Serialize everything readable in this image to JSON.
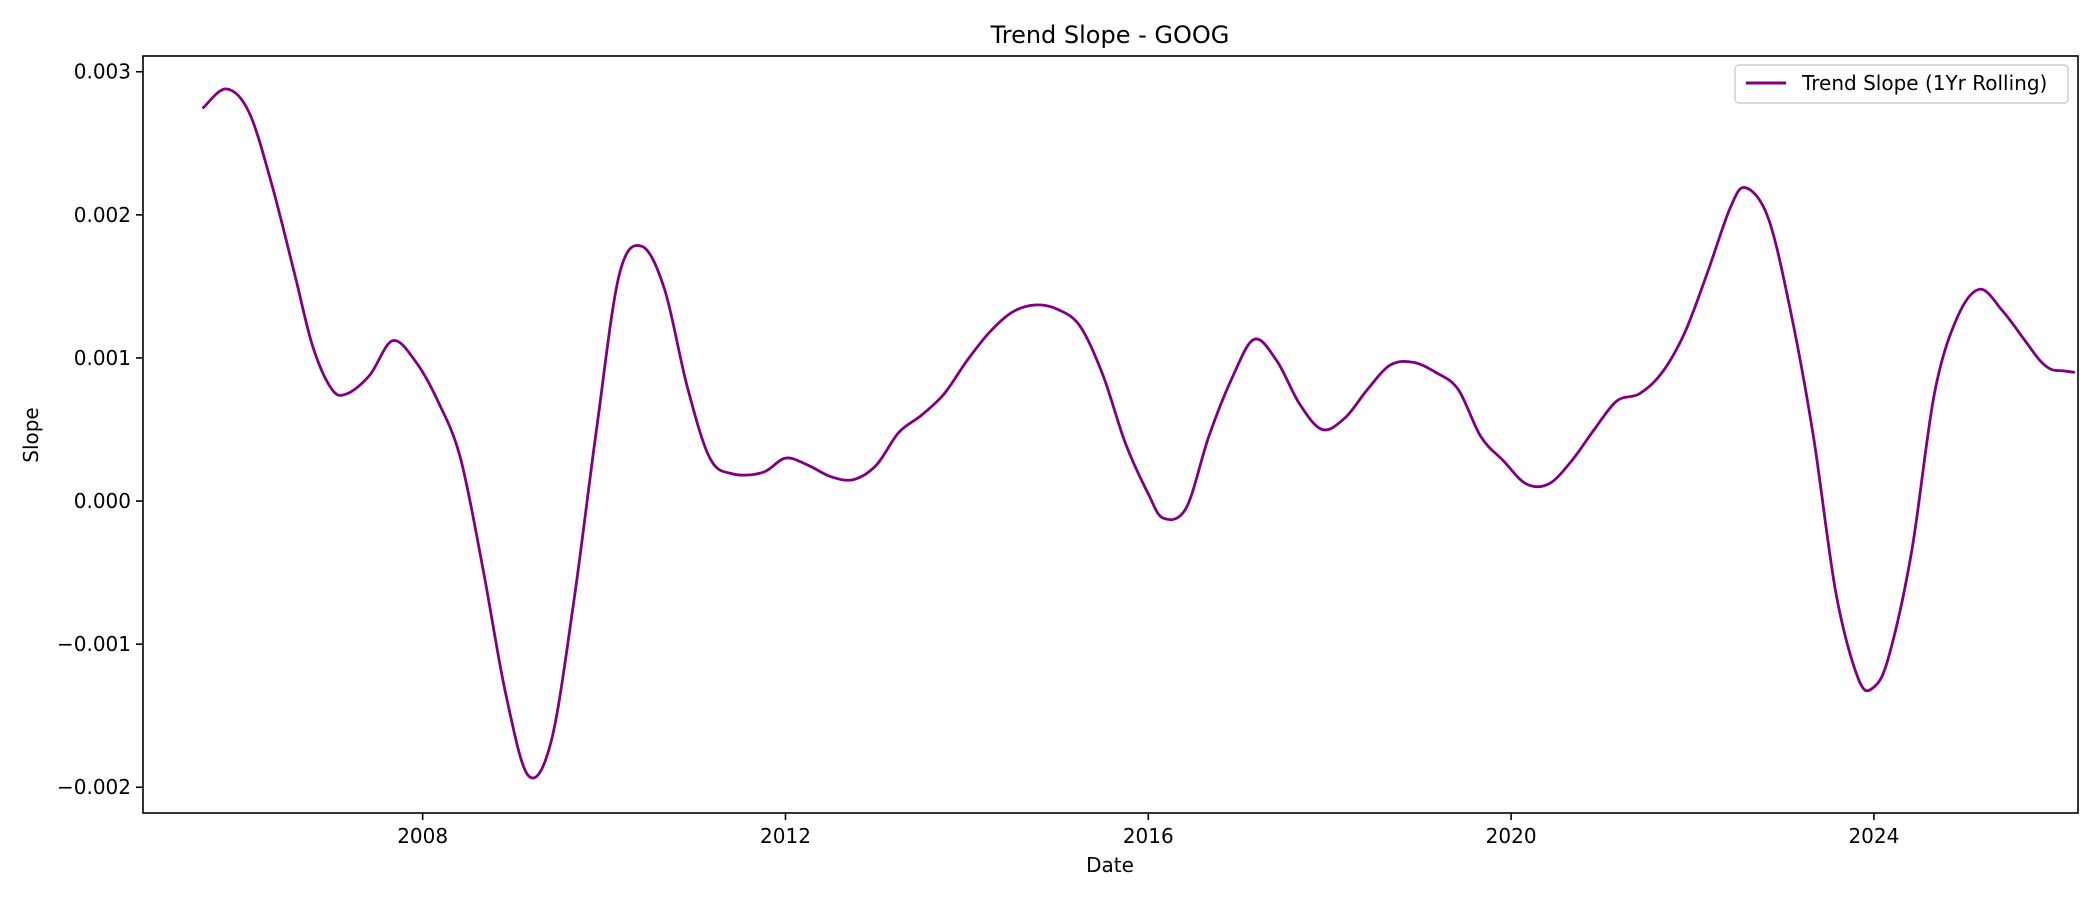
{
  "chart_data": {
    "type": "line",
    "title": "Trend Slope - GOOG",
    "xlabel": "Date",
    "ylabel": "Slope",
    "xlim": [
      "2004-12-01",
      "2026-04-01"
    ],
    "ylim": [
      -0.00218,
      0.00311
    ],
    "x_ticks": [
      "2008",
      "2012",
      "2016",
      "2020",
      "2024"
    ],
    "y_ticks": [
      {
        "value": 0.003,
        "label": "0.003"
      },
      {
        "value": 0.002,
        "label": "0.002"
      },
      {
        "value": 0.001,
        "label": "0.001"
      },
      {
        "value": 0.0,
        "label": "0.000"
      },
      {
        "value": -0.001,
        "label": "−0.001"
      },
      {
        "value": -0.002,
        "label": "−0.002"
      }
    ],
    "grid": false,
    "legend": {
      "placement": "top-right",
      "entries": [
        "Trend Slope (1Yr Rolling)"
      ]
    },
    "series": [
      {
        "name": "Trend Slope (1Yr Rolling)",
        "color": "#800080",
        "points": [
          [
            "2005-08-01",
            0.00275
          ],
          [
            "2005-11-01",
            0.00288
          ],
          [
            "2006-02-01",
            0.00272
          ],
          [
            "2006-05-01",
            0.00222
          ],
          [
            "2006-08-01",
            0.0016
          ],
          [
            "2006-10-15",
            0.00108
          ],
          [
            "2007-01-01",
            0.00078
          ],
          [
            "2007-03-01",
            0.00075
          ],
          [
            "2007-06-01",
            0.00088
          ],
          [
            "2007-09-01",
            0.00112
          ],
          [
            "2007-12-01",
            0.00098
          ],
          [
            "2008-03-01",
            0.0007
          ],
          [
            "2008-06-01",
            0.0003
          ],
          [
            "2008-09-01",
            -0.00048
          ],
          [
            "2008-12-01",
            -0.00135
          ],
          [
            "2009-03-01",
            -0.00192
          ],
          [
            "2009-06-01",
            -0.00168
          ],
          [
            "2009-09-01",
            -0.0007
          ],
          [
            "2009-12-01",
            0.0005
          ],
          [
            "2010-03-01",
            0.00158
          ],
          [
            "2010-06-01",
            0.00178
          ],
          [
            "2010-09-01",
            0.00148
          ],
          [
            "2010-12-01",
            0.0008
          ],
          [
            "2011-03-01",
            0.0003
          ],
          [
            "2011-06-01",
            0.00019
          ],
          [
            "2011-10-01",
            0.0002
          ],
          [
            "2012-01-01",
            0.0003
          ],
          [
            "2012-04-01",
            0.00025
          ],
          [
            "2012-07-01",
            0.00017
          ],
          [
            "2012-10-01",
            0.00015
          ],
          [
            "2013-01-01",
            0.00025
          ],
          [
            "2013-04-01",
            0.00048
          ],
          [
            "2013-07-01",
            0.0006
          ],
          [
            "2013-10-01",
            0.00075
          ],
          [
            "2014-01-01",
            0.00098
          ],
          [
            "2014-04-01",
            0.00118
          ],
          [
            "2014-07-01",
            0.00132
          ],
          [
            "2014-10-01",
            0.00137
          ],
          [
            "2015-01-01",
            0.00134
          ],
          [
            "2015-04-01",
            0.00122
          ],
          [
            "2015-07-01",
            0.00088
          ],
          [
            "2015-10-01",
            0.0004
          ],
          [
            "2016-01-01",
            5e-05
          ],
          [
            "2016-03-01",
            -0.00012
          ],
          [
            "2016-06-01",
            -5e-05
          ],
          [
            "2016-09-01",
            0.00045
          ],
          [
            "2016-12-01",
            0.00085
          ],
          [
            "2017-03-01",
            0.00113
          ],
          [
            "2017-06-01",
            0.00098
          ],
          [
            "2017-09-01",
            0.00068
          ],
          [
            "2017-12-01",
            0.0005
          ],
          [
            "2018-03-01",
            0.00058
          ],
          [
            "2018-06-01",
            0.00078
          ],
          [
            "2018-09-01",
            0.00095
          ],
          [
            "2018-12-01",
            0.00097
          ],
          [
            "2019-03-01",
            0.0009
          ],
          [
            "2019-06-01",
            0.00078
          ],
          [
            "2019-09-01",
            0.00045
          ],
          [
            "2019-12-01",
            0.00028
          ],
          [
            "2020-03-01",
            0.00012
          ],
          [
            "2020-06-01",
            0.00012
          ],
          [
            "2020-09-01",
            0.00028
          ],
          [
            "2020-12-01",
            0.0005
          ],
          [
            "2021-03-01",
            0.0007
          ],
          [
            "2021-06-01",
            0.00075
          ],
          [
            "2021-09-01",
            0.0009
          ],
          [
            "2021-12-01",
            0.00118
          ],
          [
            "2022-03-01",
            0.0016
          ],
          [
            "2022-06-01",
            0.00205
          ],
          [
            "2022-08-01",
            0.00219
          ],
          [
            "2022-11-01",
            0.00198
          ],
          [
            "2023-02-01",
            0.00132
          ],
          [
            "2023-05-01",
            0.00045
          ],
          [
            "2023-08-01",
            -0.00065
          ],
          [
            "2023-11-01",
            -0.00125
          ],
          [
            "2024-01-01",
            -0.0013
          ],
          [
            "2024-03-01",
            -0.00108
          ],
          [
            "2024-06-01",
            -0.00035
          ],
          [
            "2024-09-01",
            0.00075
          ],
          [
            "2024-12-01",
            0.00128
          ],
          [
            "2025-03-01",
            0.00148
          ],
          [
            "2025-06-01",
            0.00133
          ],
          [
            "2025-09-01",
            0.00112
          ],
          [
            "2025-11-01",
            0.00098
          ],
          [
            "2025-12-15",
            0.00092
          ],
          [
            "2026-02-01",
            0.00091
          ],
          [
            "2026-03-15",
            0.0009
          ]
        ]
      }
    ]
  }
}
